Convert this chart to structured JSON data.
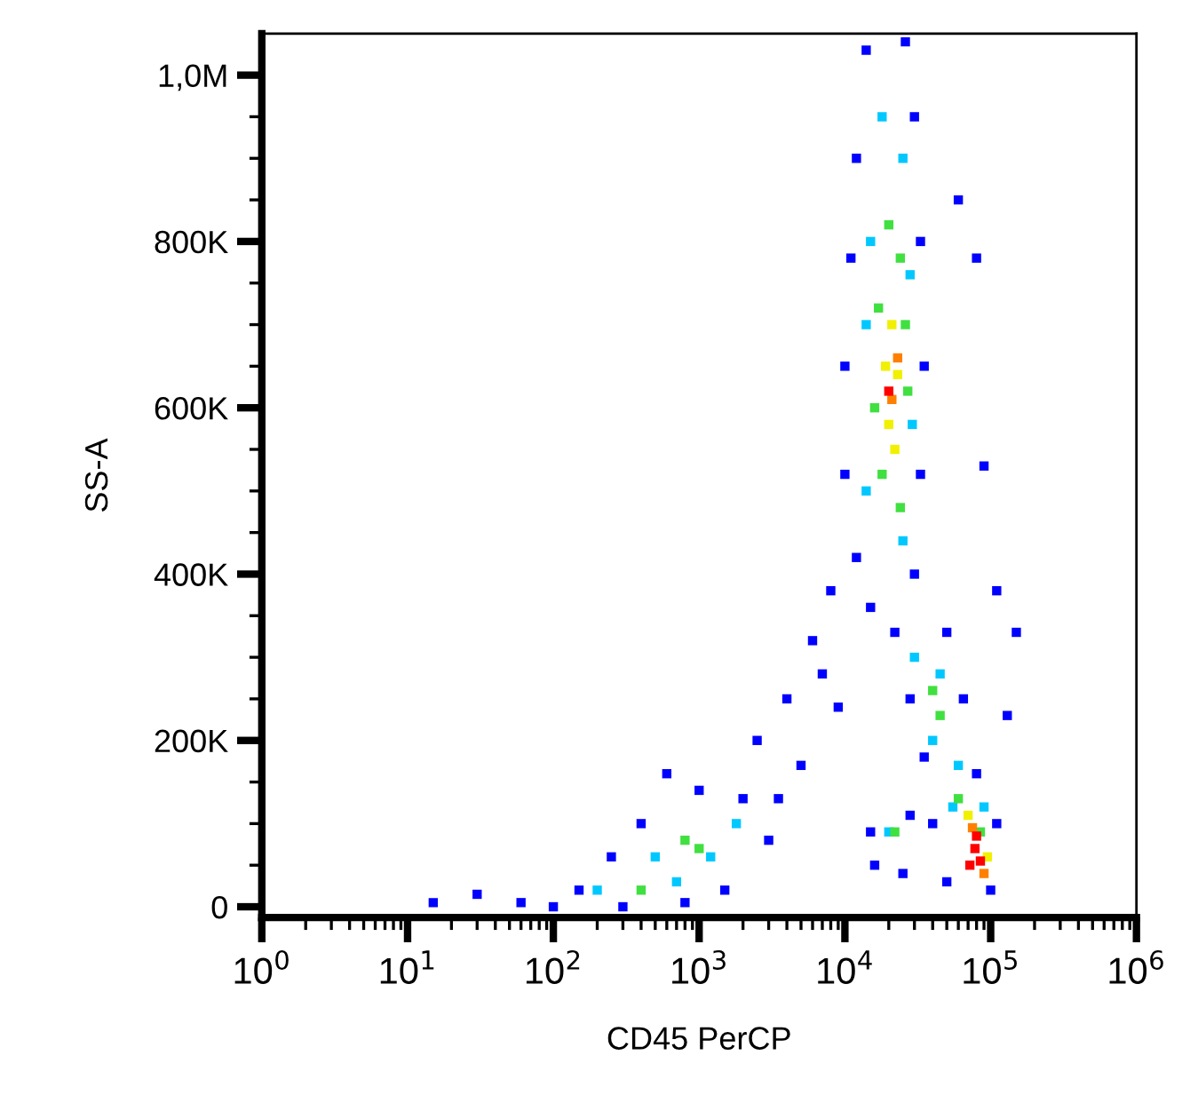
{
  "chart_data": {
    "type": "scatter",
    "xlabel": "CD45 PerCP",
    "ylabel": "SS-A",
    "log": "x",
    "marker": "square",
    "grid": false,
    "legend": false,
    "xlim": [
      1,
      1000000
    ],
    "ylim": [
      -13000,
      1050000
    ],
    "xticks": [
      {
        "value": 1,
        "label": "10$^{0}$"
      },
      {
        "value": 10,
        "label": "10$^{1}$"
      },
      {
        "value": 100,
        "label": "10$^{2}$"
      },
      {
        "value": 1000,
        "label": "10$^{3}$"
      },
      {
        "value": 10000,
        "label": "10$^{4}$"
      },
      {
        "value": 100000,
        "label": "10$^{5}$"
      },
      {
        "value": 1000000,
        "label": "10$^{6}$"
      },
      {
        "value": 2,
        "label": null
      },
      {
        "value": 3,
        "label": null
      },
      {
        "value": 4,
        "label": null
      },
      {
        "value": 5,
        "label": null
      },
      {
        "value": 6,
        "label": null
      },
      {
        "value": 7,
        "label": null
      },
      {
        "value": 8,
        "label": null
      },
      {
        "value": 9,
        "label": null
      },
      {
        "value": 20,
        "label": null
      },
      {
        "value": 30,
        "label": null
      },
      {
        "value": 40,
        "label": null
      },
      {
        "value": 50,
        "label": null
      },
      {
        "value": 60,
        "label": null
      },
      {
        "value": 70,
        "label": null
      },
      {
        "value": 80,
        "label": null
      },
      {
        "value": 90,
        "label": null
      },
      {
        "value": 200,
        "label": null
      },
      {
        "value": 300,
        "label": null
      },
      {
        "value": 400,
        "label": null
      },
      {
        "value": 500,
        "label": null
      },
      {
        "value": 600,
        "label": null
      },
      {
        "value": 700,
        "label": null
      },
      {
        "value": 800,
        "label": null
      },
      {
        "value": 900,
        "label": null
      },
      {
        "value": 2000,
        "label": null
      },
      {
        "value": 3000,
        "label": null
      },
      {
        "value": 4000,
        "label": null
      },
      {
        "value": 5000,
        "label": null
      },
      {
        "value": 6000,
        "label": null
      },
      {
        "value": 7000,
        "label": null
      },
      {
        "value": 8000,
        "label": null
      },
      {
        "value": 9000,
        "label": null
      },
      {
        "value": 20000,
        "label": null
      },
      {
        "value": 30000,
        "label": null
      },
      {
        "value": 40000,
        "label": null
      },
      {
        "value": 50000,
        "label": null
      },
      {
        "value": 60000,
        "label": null
      },
      {
        "value": 70000,
        "label": null
      },
      {
        "value": 80000,
        "label": null
      },
      {
        "value": 90000,
        "label": null
      },
      {
        "value": 200000,
        "label": null
      },
      {
        "value": 300000,
        "label": null
      },
      {
        "value": 400000,
        "label": null
      },
      {
        "value": 500000,
        "label": null
      },
      {
        "value": 600000,
        "label": null
      },
      {
        "value": 700000,
        "label": null
      },
      {
        "value": 800000,
        "label": null
      },
      {
        "value": 900000,
        "label": null
      }
    ],
    "yticks": [
      {
        "value": 0,
        "label": "0"
      },
      {
        "value": 200000,
        "label": "200K"
      },
      {
        "value": 400000,
        "label": "400K"
      },
      {
        "value": 600000,
        "label": "600K"
      },
      {
        "value": 800000,
        "label": "800K"
      },
      {
        "value": 1000000,
        "label": "1,0M"
      },
      {
        "value": 50000,
        "label": null
      },
      {
        "value": 100000,
        "label": null
      },
      {
        "value": 150000,
        "label": null
      },
      {
        "value": 250000,
        "label": null
      },
      {
        "value": 300000,
        "label": null
      },
      {
        "value": 350000,
        "label": null
      },
      {
        "value": 450000,
        "label": null
      },
      {
        "value": 500000,
        "label": null
      },
      {
        "value": 550000,
        "label": null
      },
      {
        "value": 650000,
        "label": null
      },
      {
        "value": 700000,
        "label": null
      },
      {
        "value": 750000,
        "label": null
      },
      {
        "value": 850000,
        "label": null
      },
      {
        "value": 900000,
        "label": null
      },
      {
        "value": 950000,
        "label": null
      }
    ],
    "series": [
      {
        "color": "#0000ff",
        "x": [
          14000,
          26000,
          12000,
          30000,
          11000,
          33000,
          10000,
          35000,
          10000,
          33000,
          12000,
          30000,
          15000,
          22000,
          50000,
          28000,
          65000,
          35000,
          80000,
          40000,
          110000,
          50000,
          100000,
          60000,
          80000,
          90000,
          110000,
          150000,
          130000,
          15000,
          28000,
          16000,
          25000,
          60,
          100,
          150,
          250,
          400,
          600,
          1000,
          2000,
          3000,
          1500,
          800,
          300,
          15,
          30,
          2500,
          4000,
          6000,
          8000,
          5000,
          9000,
          3500,
          7000
        ],
        "values": [
          1030000,
          1040000,
          900000,
          950000,
          780000,
          800000,
          650000,
          650000,
          520000,
          520000,
          420000,
          400000,
          360000,
          330000,
          330000,
          250000,
          250000,
          180000,
          160000,
          100000,
          100000,
          30000,
          20000,
          850000,
          780000,
          530000,
          380000,
          330000,
          230000,
          90000,
          110000,
          50000,
          40000,
          5000,
          0,
          20000,
          60000,
          100000,
          160000,
          140000,
          130000,
          80000,
          20000,
          5000,
          0,
          5000,
          15000,
          200000,
          250000,
          320000,
          380000,
          170000,
          240000,
          130000,
          280000
        ]
      },
      {
        "color": "#00c8ff",
        "x": [
          18000,
          25000,
          15000,
          28000,
          14000,
          29000,
          14000,
          25000,
          30000,
          45000,
          40000,
          60000,
          55000,
          90000,
          20000,
          200,
          500,
          1200,
          1800,
          700
        ],
        "values": [
          950000,
          900000,
          800000,
          760000,
          700000,
          580000,
          500000,
          440000,
          300000,
          280000,
          200000,
          170000,
          120000,
          120000,
          90000,
          20000,
          60000,
          60000,
          100000,
          30000
        ]
      },
      {
        "color": "#40e040",
        "x": [
          20000,
          24000,
          17000,
          26000,
          16000,
          27000,
          18000,
          24000,
          40000,
          45000,
          60000,
          85000,
          800,
          1000,
          400,
          22000
        ],
        "values": [
          820000,
          780000,
          720000,
          700000,
          600000,
          620000,
          520000,
          480000,
          260000,
          230000,
          130000,
          90000,
          80000,
          70000,
          20000,
          90000
        ]
      },
      {
        "color": "#f0f000",
        "x": [
          21000,
          19000,
          23000,
          20000,
          22000,
          70000,
          95000
        ],
        "values": [
          700000,
          650000,
          640000,
          580000,
          550000,
          110000,
          60000
        ]
      },
      {
        "color": "#ff8000",
        "x": [
          21000,
          23000,
          75000,
          90000
        ],
        "values": [
          610000,
          660000,
          95000,
          40000
        ]
      },
      {
        "color": "#ff0000",
        "x": [
          20000,
          78000,
          85000,
          72000,
          80000
        ],
        "values": [
          620000,
          70000,
          55000,
          50000,
          85000
        ]
      }
    ]
  }
}
